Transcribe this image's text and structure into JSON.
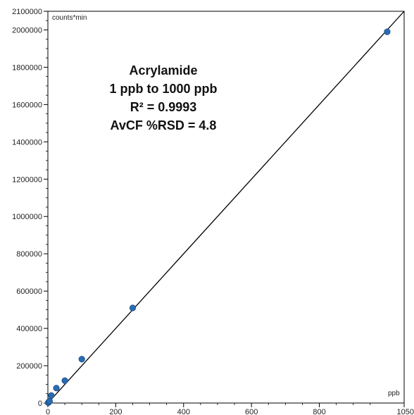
{
  "chart_data": {
    "type": "scatter",
    "x_unit": "ppb",
    "y_unit": "counts*min",
    "xlim": [
      0,
      1050
    ],
    "ylim": [
      0,
      2100000
    ],
    "x_ticks": [
      0,
      200,
      400,
      600,
      800,
      1050
    ],
    "y_ticks": [
      0,
      200000,
      400000,
      600000,
      800000,
      1000000,
      1200000,
      1400000,
      1600000,
      1800000,
      2000000,
      2100000
    ],
    "points": [
      {
        "x": 1,
        "y": 2000
      },
      {
        "x": 2.5,
        "y": 5000
      },
      {
        "x": 5,
        "y": 10000
      },
      {
        "x": 10,
        "y": 40000
      },
      {
        "x": 25,
        "y": 80000
      },
      {
        "x": 50,
        "y": 120000
      },
      {
        "x": 100,
        "y": 235000
      },
      {
        "x": 250,
        "y": 510000
      },
      {
        "x": 1000,
        "y": 1990000
      }
    ],
    "fit_line": {
      "x": [
        0,
        1050
      ],
      "y": [
        0,
        2100000
      ]
    },
    "annotation": {
      "title": "Acrylamide",
      "range": "1 ppb to 1000 ppb",
      "r2": "R² = 0.9993",
      "rsd": "AvCF %RSD = 4.8"
    },
    "point_color": "#2b6cb0",
    "line_color": "#000000",
    "grid": false
  }
}
